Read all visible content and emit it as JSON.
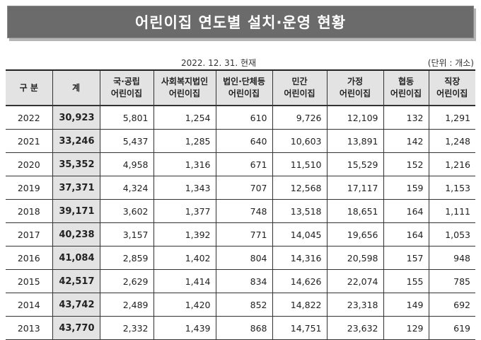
{
  "title": "어린이집 연도별 설치·운영 현황",
  "date_note": "2022. 12. 31. 현재",
  "unit_note": "(단위 : 개소)",
  "table": {
    "headers": [
      "구 분",
      "계",
      "국·공립\n어린이집",
      "사회복지법인\n어린이집",
      "법인·단체등\n어린이집",
      "민간\n어린이집",
      "가정\n어린이집",
      "협동\n어린이집",
      "직장\n어린이집"
    ],
    "rows": [
      [
        "2022",
        "30,923",
        "5,801",
        "1,254",
        "610",
        "9,726",
        "12,109",
        "132",
        "1,291"
      ],
      [
        "2021",
        "33,246",
        "5,437",
        "1,285",
        "640",
        "10,603",
        "13,891",
        "142",
        "1,248"
      ],
      [
        "2020",
        "35,352",
        "4,958",
        "1,316",
        "671",
        "11,510",
        "15,529",
        "152",
        "1,216"
      ],
      [
        "2019",
        "37,371",
        "4,324",
        "1,343",
        "707",
        "12,568",
        "17,117",
        "159",
        "1,153"
      ],
      [
        "2018",
        "39,171",
        "3,602",
        "1,377",
        "748",
        "13,518",
        "18,651",
        "164",
        "1,111"
      ],
      [
        "2017",
        "40,238",
        "3,157",
        "1,392",
        "771",
        "14,045",
        "19,656",
        "164",
        "1,053"
      ],
      [
        "2016",
        "41,084",
        "2,859",
        "1,402",
        "804",
        "14,316",
        "20,598",
        "157",
        "948"
      ],
      [
        "2015",
        "42,517",
        "2,629",
        "1,414",
        "834",
        "14,626",
        "22,074",
        "155",
        "785"
      ],
      [
        "2014",
        "43,742",
        "2,489",
        "1,420",
        "852",
        "14,822",
        "23,318",
        "149",
        "692"
      ],
      [
        "2013",
        "43,770",
        "2,332",
        "1,439",
        "868",
        "14,751",
        "23,632",
        "129",
        "619"
      ]
    ]
  }
}
